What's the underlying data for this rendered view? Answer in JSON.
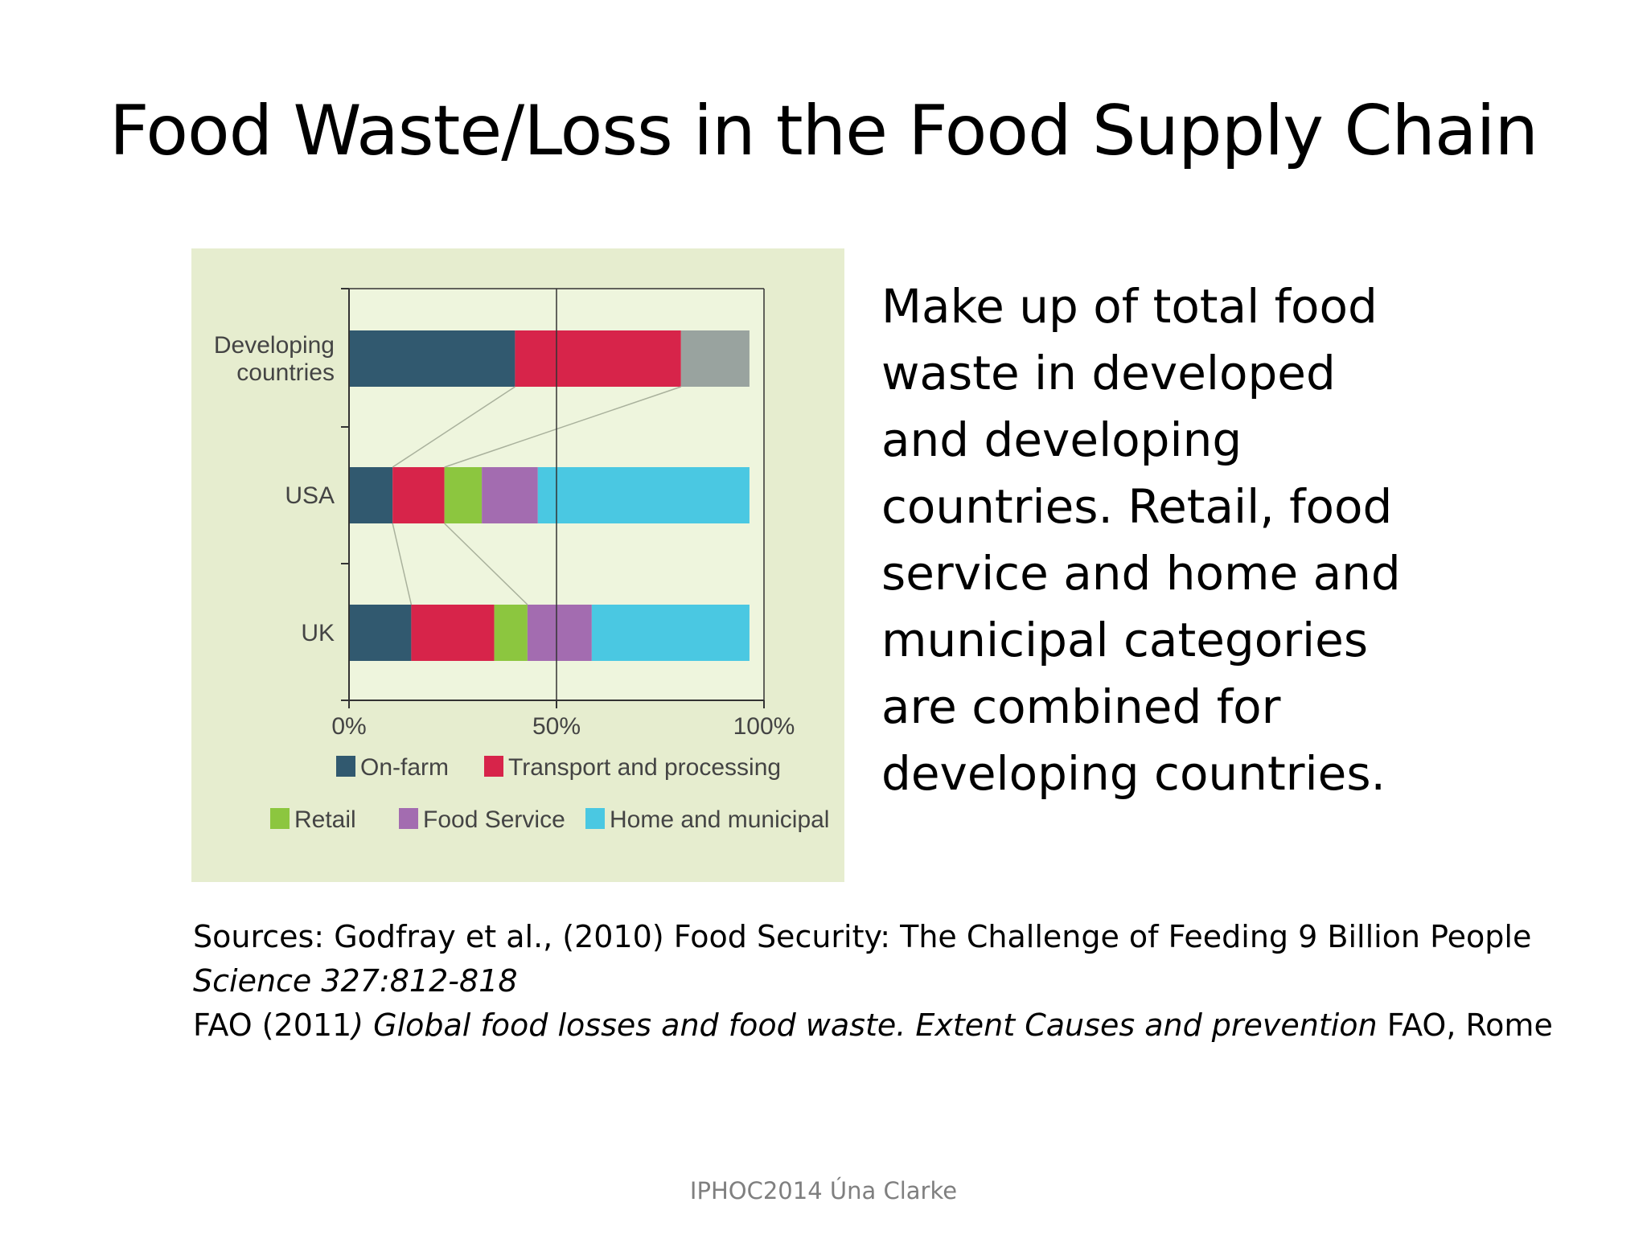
{
  "slide": {
    "title": "Food Waste/Loss in the Food Supply Chain",
    "description": "Make up of total food waste in developed and developing countries. Retail, food service and home and municipal categories are combined for developing countries.",
    "sources": {
      "line1": "Sources: Godfray et al., (2010) Food Security: The Challenge of Feeding 9 Billion People",
      "line2_italic": "Science 327:812-818",
      "line3_prefix": "FAO (2011",
      "line3_italic": ") Global food losses and food waste. Extent Causes  and prevention",
      "line3_suffix": " FAO, Rome"
    },
    "footer": "IPHOC2014  Úna Clarke"
  },
  "chart_data": {
    "type": "bar",
    "orientation": "horizontal",
    "stacked": true,
    "background_color": "#e6edcf",
    "plot_background_color": "#eef5dd",
    "categories": [
      "Developing countries",
      "USA",
      "UK"
    ],
    "category_labels": [
      [
        "Developing",
        "countries"
      ],
      [
        "USA"
      ],
      [
        "UK"
      ]
    ],
    "x_ticks": [
      "0%",
      "50%",
      "100%"
    ],
    "xlim": [
      0,
      100
    ],
    "grid": false,
    "legend_position": "bottom",
    "series": [
      {
        "name": "On-farm",
        "color": "#31596f",
        "values": [
          40,
          10.5,
          15
        ]
      },
      {
        "name": "Transport and processing",
        "color": "#d7244a",
        "values": [
          40,
          12.5,
          20
        ]
      },
      {
        "name": "Retail",
        "color": "#8cc63f",
        "values": [
          null,
          9,
          8
        ]
      },
      {
        "name": "Food Service",
        "color": "#a36cb0",
        "values": [
          null,
          13.5,
          15.5
        ]
      },
      {
        "name": "Home and municipal",
        "color": "#4ac8e2",
        "values": [
          null,
          51,
          38
        ]
      },
      {
        "name": "",
        "color": "#99a39f",
        "values": [
          16.5,
          null,
          null
        ]
      }
    ],
    "legend_rows": [
      [
        "On-farm",
        "Transport and processing"
      ],
      [
        "Retail",
        "Food Service",
        "Home and municipal"
      ]
    ]
  }
}
